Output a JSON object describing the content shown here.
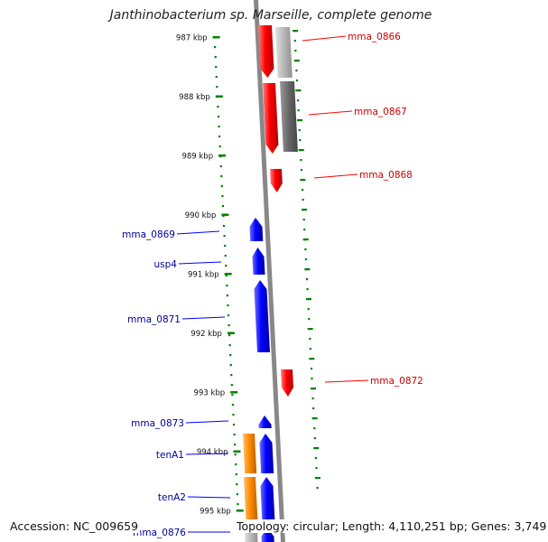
{
  "title": "Janthinobacterium sp. Marseille, complete genome",
  "footer": {
    "accession": "Accession: NC_009659",
    "summary": "Topology: circular; Length: 4,110,251 bp; Genes: 3,749"
  },
  "colors": {
    "forward": "#ff0000",
    "reverse": "#0000ff",
    "other": "#ff8c00",
    "gray": "#9a9a9a",
    "gray_dark": "#555555",
    "tick": "#008000",
    "label_fwd": "#cc0000",
    "label_rev": "#000099"
  },
  "axis": {
    "ticks": [
      "987 kbp",
      "988 kbp",
      "989 kbp",
      "990 kbp",
      "991 kbp",
      "992 kbp",
      "993 kbp",
      "994 kbp",
      "995 kbp"
    ]
  },
  "genes": [
    {
      "label": "mma_0866",
      "strand": "forward"
    },
    {
      "label": "mma_0867",
      "strand": "forward"
    },
    {
      "label": "mma_0868",
      "strand": "forward"
    },
    {
      "label": "mma_0869",
      "strand": "reverse"
    },
    {
      "label": "usp4",
      "strand": "reverse"
    },
    {
      "label": "mma_0871",
      "strand": "reverse"
    },
    {
      "label": "mma_0872",
      "strand": "forward"
    },
    {
      "label": "mma_0873",
      "strand": "reverse"
    },
    {
      "label": "tenA1",
      "strand": "reverse"
    },
    {
      "label": "tenA2",
      "strand": "reverse"
    },
    {
      "label": "mma_0876",
      "strand": "reverse"
    }
  ]
}
